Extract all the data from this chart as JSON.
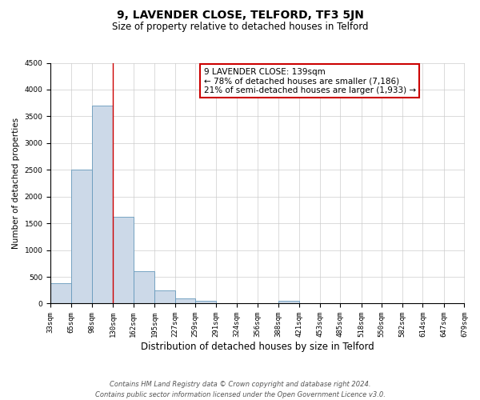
{
  "title": "9, LAVENDER CLOSE, TELFORD, TF3 5JN",
  "subtitle": "Size of property relative to detached houses in Telford",
  "xlabel": "Distribution of detached houses by size in Telford",
  "ylabel": "Number of detached properties",
  "bins": [
    33,
    65,
    98,
    130,
    162,
    195,
    227,
    259,
    291,
    324,
    356,
    388,
    421,
    453,
    485,
    518,
    550,
    582,
    614,
    647,
    679
  ],
  "counts": [
    380,
    2500,
    3700,
    1620,
    600,
    240,
    100,
    55,
    0,
    0,
    0,
    55,
    0,
    0,
    0,
    0,
    0,
    0,
    0,
    0
  ],
  "bar_color": "#ccd9e8",
  "bar_edge_color": "#6699bb",
  "vline_x": 130,
  "vline_color": "#cc0000",
  "ylim": [
    0,
    4500
  ],
  "yticks": [
    0,
    500,
    1000,
    1500,
    2000,
    2500,
    3000,
    3500,
    4000,
    4500
  ],
  "annotation_box_text": "9 LAVENDER CLOSE: 139sqm\n← 78% of detached houses are smaller (7,186)\n21% of semi-detached houses are larger (1,933) →",
  "annotation_box_color": "#cc0000",
  "footer_line1": "Contains HM Land Registry data © Crown copyright and database right 2024.",
  "footer_line2": "Contains public sector information licensed under the Open Government Licence v3.0.",
  "background_color": "#ffffff",
  "grid_color": "#cccccc",
  "tick_labels": [
    "33sqm",
    "65sqm",
    "98sqm",
    "130sqm",
    "162sqm",
    "195sqm",
    "227sqm",
    "259sqm",
    "291sqm",
    "324sqm",
    "356sqm",
    "388sqm",
    "421sqm",
    "453sqm",
    "485sqm",
    "518sqm",
    "550sqm",
    "582sqm",
    "614sqm",
    "647sqm",
    "679sqm"
  ],
  "title_fontsize": 10,
  "subtitle_fontsize": 8.5,
  "xlabel_fontsize": 8.5,
  "ylabel_fontsize": 7.5,
  "tick_fontsize": 6.5,
  "ann_fontsize": 7.5,
  "footer_fontsize": 6
}
